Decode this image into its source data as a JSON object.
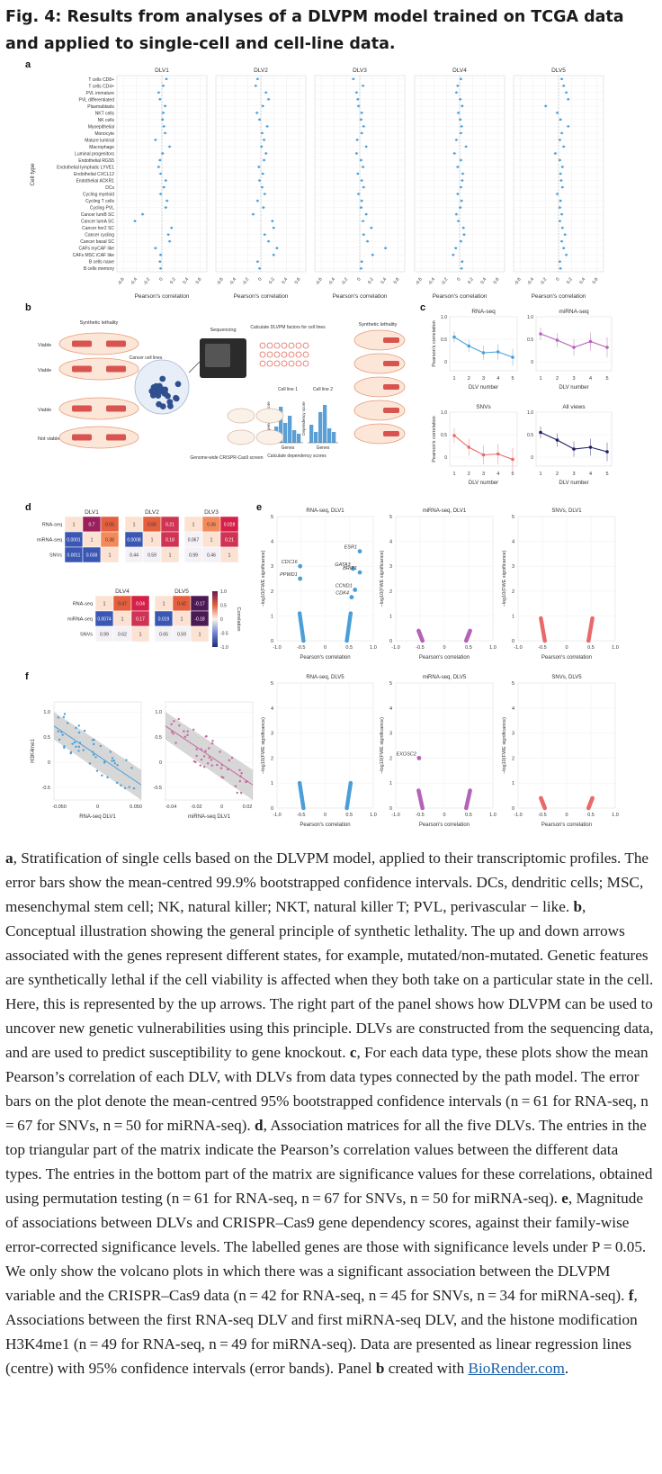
{
  "title": "Fig. 4: Results from analyses of a DLVPM model trained on TCGA data and applied to single-cell and cell-line data.",
  "panel_letters": {
    "a": "a",
    "b": "b",
    "c": "c",
    "d": "d",
    "e": "e",
    "f": "f"
  },
  "panel_a": {
    "ylabel": "Cell type",
    "xlabel": "Pearson's correlation",
    "ticks": [
      -0.6,
      -0.4,
      -0.2,
      0,
      0.2,
      0.4,
      0.6
    ],
    "tick_labels": [
      "-0.6",
      "-0.4",
      "-0.2",
      "0",
      "0.2",
      "0.4",
      "0.6"
    ],
    "cell_types": [
      "T cells CD8+",
      "T cells CD4+",
      "PVL immature",
      "PVL differentiated",
      "Plasmablasts",
      "NKT cells",
      "NK cells",
      "Myoepithelial",
      "Monocyte",
      "Mature luminal",
      "Macrophage",
      "Luminal progenitors",
      "Endothelial RGS5",
      "Endothelial lymphatic LYVE1",
      "Endothelial CXCL12",
      "Endothelial ACKR1",
      "DCs",
      "Cycling myeloid",
      "Cycling T cells",
      "Cycling PVL",
      "Cancer lumB SC",
      "Cancer lumA SC",
      "Cancer her2 SC",
      "Cancer cycling",
      "Cancer basal SC",
      "CAFs myCAF like",
      "CAFs MSC iCAF like",
      "B cells naive",
      "B cells memory"
    ],
    "facets": [
      "DLV1",
      "DLV2",
      "DLV3",
      "DLV4",
      "DLV5"
    ]
  },
  "panel_b": {
    "synthetic_lethality": "Synthetic lethality",
    "row_labels": [
      "Viable",
      "Viable",
      "Viable",
      "Not viable"
    ],
    "cancer_cell_lines": "Cancer cell lines",
    "sequencing": "Sequencing",
    "calc_factors": "Calculate DLVPM factors for cell lines",
    "cell_line_1": "Cell line 1",
    "cell_line_2": "Cell line 2",
    "dependency_score": "Dependency score",
    "genes": "Genes",
    "calc_dependency": "Calculate dependency scores",
    "crispr": "Genome-wide CRISPR-Cas9 screen",
    "synthetic_lethality_right": "Synthetic lethality"
  },
  "chart_data": [
    {
      "type": "scatter",
      "panel": "a",
      "title": "",
      "xlabel": "Pearson's correlation",
      "ylabel": "Cell type",
      "xlim": [
        -0.7,
        0.7
      ],
      "categories": [
        "T cells CD8+",
        "T cells CD4+",
        "PVL immature",
        "PVL differentiated",
        "Plasmablasts",
        "NKT cells",
        "NK cells",
        "Myoepithelial",
        "Monocyte",
        "Mature luminal",
        "Macrophage",
        "Luminal progenitors",
        "Endothelial RGS5",
        "Endothelial lymphatic LYVE1",
        "Endothelial CXCL12",
        "Endothelial ACKR1",
        "DCs",
        "Cycling myeloid",
        "Cycling T cells",
        "Cycling PVL",
        "Cancer lumB SC",
        "Cancer lumA SC",
        "Cancer her2 SC",
        "Cancer cycling",
        "Cancer basal SC",
        "CAFs myCAF like",
        "CAFs MSC iCAF like",
        "B cells naive",
        "B cells memory"
      ],
      "series": [
        {
          "name": "DLV1",
          "values": [
            0.07,
            0.02,
            -0.05,
            -0.03,
            0.05,
            0.02,
            0.01,
            0.03,
            0.05,
            -0.1,
            0.12,
            0.01,
            -0.03,
            -0.05,
            -0.02,
            0.06,
            0.03,
            -0.02,
            0.08,
            0.06,
            -0.3,
            -0.42,
            0.15,
            0.1,
            0.12,
            -0.1,
            -0.02,
            -0.03,
            -0.02
          ]
        },
        {
          "name": "DLV2",
          "values": [
            -0.05,
            -0.08,
            0.08,
            0.12,
            0.03,
            -0.06,
            -0.02,
            0.1,
            0.02,
            0.05,
            0.01,
            0.08,
            0.05,
            -0.03,
            0.03,
            -0.02,
            0.02,
            0.06,
            -0.05,
            0.04,
            -0.12,
            0.18,
            0.2,
            0.06,
            0.12,
            0.25,
            0.2,
            -0.05,
            -0.02
          ]
        },
        {
          "name": "DLV3",
          "values": [
            -0.1,
            0.05,
            -0.05,
            -0.03,
            -0.02,
            0.03,
            0.02,
            0.06,
            0.03,
            -0.04,
            0.1,
            -0.05,
            0.02,
            0.05,
            -0.03,
            0.03,
            0.06,
            -0.02,
            0.03,
            0.02,
            0.1,
            0.05,
            0.18,
            0.06,
            0.12,
            0.4,
            0.2,
            0.03,
            0.02
          ]
        },
        {
          "name": "DLV4",
          "values": [
            0.02,
            -0.03,
            -0.05,
            0.01,
            0.04,
            -0.02,
            0.01,
            0.03,
            0.02,
            -0.05,
            0.1,
            -0.08,
            0.02,
            -0.03,
            0.05,
            0.04,
            0.02,
            -0.03,
            0.03,
            0.01,
            -0.05,
            -0.02,
            0.06,
            0.07,
            0.02,
            -0.06,
            -0.1,
            0.04,
            0.03
          ]
        },
        {
          "name": "DLV5",
          "values": [
            0.05,
            0.08,
            0.12,
            0.15,
            -0.2,
            -0.02,
            0.03,
            0.15,
            0.05,
            0.02,
            0.08,
            -0.05,
            0.02,
            0.06,
            0.03,
            0.04,
            0.06,
            -0.02,
            0.03,
            0.02,
            0.05,
            0.02,
            0.06,
            0.1,
            0.05,
            0.08,
            0.12,
            0.02,
            0.03
          ]
        }
      ]
    },
    {
      "type": "line",
      "panel": "c",
      "title": "RNA-seq",
      "xlabel": "DLV number",
      "ylabel": "Pearson's correlation",
      "x": [
        1,
        2,
        3,
        4,
        5
      ],
      "ylim": [
        -0.2,
        1.0
      ],
      "values": [
        0.55,
        0.35,
        0.2,
        0.22,
        0.1
      ],
      "color": "#4a9fd8"
    },
    {
      "type": "line",
      "panel": "c",
      "title": "miRNA-seq",
      "xlabel": "DLV number",
      "ylabel": "",
      "x": [
        1,
        2,
        3,
        4,
        5
      ],
      "ylim": [
        -0.2,
        1.0
      ],
      "values": [
        0.62,
        0.48,
        0.32,
        0.45,
        0.32
      ],
      "color": "#b463b6"
    },
    {
      "type": "line",
      "panel": "c",
      "title": "SNVs",
      "xlabel": "DLV number",
      "ylabel": "Pearson's correlation",
      "x": [
        1,
        2,
        3,
        4,
        5
      ],
      "ylim": [
        -0.2,
        1.0
      ],
      "values": [
        0.48,
        0.22,
        0.05,
        0.07,
        -0.05
      ],
      "color": "#e86a6a"
    },
    {
      "type": "line",
      "panel": "c",
      "title": "All views",
      "xlabel": "DLV number",
      "ylabel": "",
      "x": [
        1,
        2,
        3,
        4,
        5
      ],
      "ylim": [
        -0.2,
        1.0
      ],
      "values": [
        0.55,
        0.38,
        0.18,
        0.22,
        0.12
      ],
      "color": "#1b1f66"
    },
    {
      "type": "heatmap",
      "panel": "d",
      "matrices": [
        {
          "title": "DLV1",
          "rows": [
            "RNA-seq",
            "miRNA-seq",
            "SNVs"
          ],
          "cells": [
            [
              "1",
              "0.7",
              "0.55"
            ],
            [
              "0.0001",
              "1",
              "0.38"
            ],
            [
              "0.0011",
              "0.038",
              "1"
            ]
          ]
        },
        {
          "title": "DLV2",
          "rows": [
            "RNA-seq",
            "miRNA-seq",
            "SNVs"
          ],
          "cells": [
            [
              "1",
              "0.55",
              "0.21"
            ],
            [
              "0.0008",
              "1",
              "0.18"
            ],
            [
              "0.44",
              "0.59",
              "1"
            ]
          ]
        },
        {
          "title": "DLV3",
          "rows": [
            "RNA-seq",
            "miRNA-seq",
            "SNVs"
          ],
          "cells": [
            [
              "1",
              "0.36",
              "0.028"
            ],
            [
              "0.067",
              "1",
              "0.21"
            ],
            [
              "0.99",
              "0.46",
              "1"
            ]
          ]
        },
        {
          "title": "DLV4",
          "rows": [
            "RNA-seq",
            "miRNA-seq",
            "SNVs"
          ],
          "cells": [
            [
              "1",
              "0.47",
              "0.04"
            ],
            [
              "0.0074",
              "1",
              "0.17"
            ],
            [
              "0.99",
              "0.62",
              "1"
            ]
          ]
        },
        {
          "title": "DLV5",
          "rows": [
            "RNA-seq",
            "miRNA-seq",
            "SNVs"
          ],
          "cells": [
            [
              "1",
              "0.42",
              "-0.17"
            ],
            [
              "0.019",
              "1",
              "-0.18"
            ],
            [
              "0.65",
              "0.59",
              "1"
            ]
          ]
        }
      ],
      "colorbar_label": "Correlation",
      "colorbar_ticks": [
        "1.0",
        "0.5",
        "0",
        "-0.5",
        "-1.0"
      ]
    },
    {
      "type": "scatter",
      "panel": "e",
      "xlabel": "Pearson's correlation",
      "ylabel": "−log10(FWE significance)",
      "xlim": [
        -1.0,
        1.0
      ],
      "ylim": [
        0,
        5
      ],
      "plots": [
        {
          "title": "RNA-seq, DLV1",
          "color": "#4a9fd8",
          "labels": [
            {
              "text": "ESR1",
              "x": 0.72,
              "y": 3.6
            },
            {
              "text": "GATA3",
              "x": 0.58,
              "y": 2.9
            },
            {
              "text": "BRIP1",
              "x": 0.72,
              "y": 2.75
            },
            {
              "text": "CDC16",
              "x": -0.52,
              "y": 3.0
            },
            {
              "text": "PPWD1",
              "x": -0.52,
              "y": 2.5
            },
            {
              "text": "CCND1",
              "x": 0.62,
              "y": 2.05
            },
            {
              "text": "CDK4",
              "x": 0.55,
              "y": 1.75
            }
          ]
        },
        {
          "title": "miRNA-seq, DLV1",
          "color": "#b463b6",
          "labels": []
        },
        {
          "title": "SNVs, DLV1",
          "color": "#e86a6a",
          "labels": []
        },
        {
          "title": "RNA-seq, DLV5",
          "color": "#4a9fd8",
          "labels": []
        },
        {
          "title": "miRNA-seq, DLV5",
          "color": "#b463b6",
          "labels": [
            {
              "text": "EXOSC2",
              "x": -0.52,
              "y": 2.0
            }
          ]
        },
        {
          "title": "SNVs, DLV5",
          "color": "#e86a6a",
          "labels": []
        }
      ]
    },
    {
      "type": "scatter",
      "panel": "f",
      "plots": [
        {
          "xlabel": "RNA-seq DLV1",
          "ylabel": "H3K4me1",
          "color": "#4a9fd8",
          "xlim": [
            -0.065,
            0.055
          ],
          "ylim": [
            -0.75,
            1.2
          ],
          "xticks": [
            "-0.050",
            "0",
            "0.050"
          ],
          "yticks": [
            "1.0",
            "0.5",
            "0",
            "-0.5"
          ]
        },
        {
          "xlabel": "miRNA-seq DLV1",
          "ylabel": "",
          "color": "#c9679f",
          "xlim": [
            -0.045,
            0.03
          ],
          "ylim": [
            -0.75,
            1.2
          ],
          "xticks": [
            "-0.04",
            "-0.02",
            "0",
            "0.02"
          ],
          "yticks": [
            "1.0",
            "0.5",
            "0",
            "-0.5"
          ]
        }
      ]
    }
  ],
  "caption": [
    {
      "b": "a",
      "t": ", Stratification of single cells based on the DLVPM model, applied to their transcriptomic profiles. The error bars show the mean-centred 99.9% bootstrapped confidence intervals. DCs, dendritic cells; MSC, mesenchymal stem cell; NK, natural killer; NKT, natural killer T; PVL, perivascular − like. "
    },
    {
      "b": "b",
      "t": ", Conceptual illustration showing the general principle of synthetic lethality. The up and down arrows associated with the genes represent different states, for example, mutated/non-mutated. Genetic features are synthetically lethal if the cell viability is affected when they both take on a particular state in the cell. Here, this is represented by the up arrows. The right part of the panel shows how DLVPM can be used to uncover new genetic vulnerabilities using this principle. DLVs are constructed from the sequencing data, and are used to predict susceptibility to gene knockout. "
    },
    {
      "b": "c",
      "t": ", For each data type, these plots show the mean Pearson’s correlation of each DLV, with DLVs from data types connected by the path model. The error bars on the plot denote the mean-centred 95% bootstrapped confidence intervals (n = 61 for RNA-seq, n = 67 for SNVs, n = 50 for miRNA-seq). "
    },
    {
      "b": "d",
      "t": ", Association matrices for all the five DLVs. The entries in the top triangular part of the matrix indicate the Pearson’s correlation values between the different data types. The entries in the bottom part of the matrix are significance values for these correlations, obtained using permutation testing (n = 61 for RNA-seq, n = 67 for SNVs, n = 50 for miRNA-seq). "
    },
    {
      "b": "e",
      "t": ", Magnitude of associations between DLVs and CRISPR–Cas9 gene dependency scores, against their family-wise error-corrected significance levels. The labelled genes are those with significance levels under P = 0.05. We only show the volcano plots in which there was a significant association between the DLVPM variable and the CRISPR–Cas9 data (n = 42 for RNA-seq, n = 45 for SNVs, n = 34 for miRNA-seq). "
    },
    {
      "b": "f",
      "t": ", Associations between the first RNA-seq DLV and first miRNA-seq DLV, and the histone modification H3K4me1 (n = 49 for RNA-seq, n = 49 for miRNA-seq). Data are presented as linear regression lines (centre) with 95% confidence intervals (error bands). Panel "
    },
    {
      "b": "b",
      "t": " created with "
    }
  ],
  "caption_link": "BioRender.com",
  "caption_end": "."
}
